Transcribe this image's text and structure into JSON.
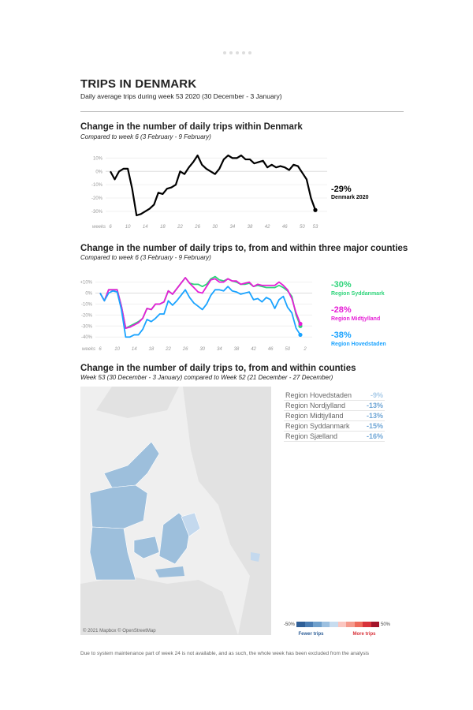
{
  "header": {
    "title": "TRIPS IN DENMARK",
    "subtitle": "Daily average trips during week 53 2020 (30 December - 3 January)"
  },
  "colors": {
    "denmark": "#000000",
    "syddanmark": "#2ed47a",
    "midtjylland": "#e61ed6",
    "hovedstaden": "#1aa3ff"
  },
  "chart_data": [
    {
      "type": "line",
      "title": "Change in the number of daily trips within Denmark",
      "subtitle": "Compared to week 6 (3 February - 9 February)",
      "xlabel": "weeks",
      "ylabel": "",
      "ylim": [
        -33,
        12
      ],
      "yticks": [
        {
          "v": 10,
          "label": "10%"
        },
        {
          "v": 0,
          "label": "0%"
        },
        {
          "v": -10,
          "label": "-10%"
        },
        {
          "v": -20,
          "label": "-20%"
        },
        {
          "v": -30,
          "label": "-30%"
        }
      ],
      "xticks": [
        "6",
        "10",
        "14",
        "18",
        "22",
        "26",
        "30",
        "34",
        "38",
        "42",
        "46",
        "50",
        "53"
      ],
      "x": [
        6,
        7,
        8,
        9,
        10,
        11,
        12,
        13,
        14,
        15,
        16,
        17,
        18,
        19,
        20,
        21,
        22,
        23,
        24,
        25,
        26,
        27,
        28,
        29,
        30,
        31,
        32,
        33,
        34,
        35,
        36,
        37,
        38,
        39,
        40,
        41,
        42,
        43,
        44,
        45,
        46,
        47,
        48,
        49,
        50,
        51,
        52,
        53
      ],
      "series": [
        {
          "name": "Denmark 2020",
          "final_label": "-29%",
          "values": [
            0,
            -6,
            0,
            2,
            2,
            -13,
            -33,
            -32,
            -30,
            -28,
            -25,
            -16,
            -17,
            -13,
            -12,
            -10,
            0,
            -2,
            3,
            7,
            12,
            5,
            2,
            0,
            -2,
            2,
            9,
            12,
            10,
            10,
            12,
            9,
            9,
            6,
            7,
            8,
            3,
            5,
            3,
            4,
            3,
            1,
            5,
            4,
            -1,
            -6,
            -20,
            -29
          ]
        }
      ]
    },
    {
      "type": "line",
      "title": "Change in the number of daily trips to, from and within three major counties",
      "subtitle": "Compared to week 6 (3 February - 9 February)",
      "xlabel": "weeks",
      "ylim": [
        -42,
        14
      ],
      "yticks": [
        {
          "v": 10,
          "label": "+10%"
        },
        {
          "v": 0,
          "label": "0%"
        },
        {
          "v": -10,
          "label": "-10%"
        },
        {
          "v": -20,
          "label": "-20%"
        },
        {
          "v": -30,
          "label": "-30%"
        },
        {
          "v": -40,
          "label": "-40%"
        }
      ],
      "xticks": [
        "6",
        "10",
        "14",
        "18",
        "22",
        "26",
        "30",
        "34",
        "38",
        "42",
        "46",
        "50",
        "2"
      ],
      "series": [
        {
          "name": "Region Syddanmark",
          "final_label": "-30%",
          "color": "#2ed47a",
          "values": [
            0,
            -7,
            3,
            3,
            3,
            -12,
            -32,
            -30,
            -28,
            -26,
            -23,
            -14,
            -15,
            -10,
            -10,
            -8,
            2,
            -1,
            4,
            9,
            14,
            9,
            8,
            8,
            6,
            8,
            13,
            15,
            12,
            11,
            13,
            11,
            10,
            8,
            8,
            9,
            6,
            7,
            6,
            5,
            5,
            5,
            7,
            5,
            2,
            -3,
            -20,
            -30
          ]
        },
        {
          "name": "Region Midtjylland",
          "final_label": "-28%",
          "color": "#e61ed6",
          "values": [
            0,
            -7,
            3,
            3,
            3,
            -12,
            -32,
            -31,
            -29,
            -27,
            -23,
            -14,
            -15,
            -10,
            -10,
            -8,
            2,
            -1,
            4,
            9,
            14,
            9,
            5,
            1,
            0,
            6,
            12,
            13,
            10,
            10,
            13,
            11,
            11,
            8,
            9,
            10,
            6,
            8,
            7,
            7,
            7,
            7,
            10,
            7,
            3,
            -5,
            -18,
            -28
          ]
        },
        {
          "name": "Region Hovedstaden",
          "final_label": "-38%",
          "color": "#1aa3ff",
          "values": [
            0,
            -7,
            0,
            2,
            1,
            -15,
            -40,
            -40,
            -38,
            -38,
            -33,
            -24,
            -26,
            -23,
            -19,
            -19,
            -7,
            -11,
            -7,
            -2,
            3,
            -4,
            -9,
            -12,
            -15,
            -10,
            -2,
            3,
            3,
            2,
            6,
            2,
            1,
            -1,
            0,
            1,
            -6,
            -5,
            -8,
            -4,
            -6,
            -14,
            -6,
            -3,
            -13,
            -18,
            -32,
            -38
          ]
        }
      ]
    },
    {
      "type": "table",
      "title": "Change in the number of daily trips to, from and within counties",
      "subtitle": "Week 53 (30 December - 3 January) compared to Week 52 (21 December - 27 December)",
      "rows": [
        {
          "region": "Region Hovedstaden",
          "value": "-9%",
          "color": "#a9cbe8"
        },
        {
          "region": "Region Nordjylland",
          "value": "-13%",
          "color": "#6fa6d6"
        },
        {
          "region": "Region Midtjylland",
          "value": "-13%",
          "color": "#6fa6d6"
        },
        {
          "region": "Region Syddanmark",
          "value": "-15%",
          "color": "#6fa6d6"
        },
        {
          "region": "Region Sjælland",
          "value": "-16%",
          "color": "#6fa6d6"
        }
      ],
      "legend": {
        "min": "-50%",
        "max": "50%",
        "left_label": "Fewer trips",
        "right_label": "More trips",
        "colors": [
          "#2f5f97",
          "#4a7db3",
          "#6fa0cc",
          "#9cc0e0",
          "#c7dcef",
          "#fbc6c0",
          "#f59a8c",
          "#ee6a5a",
          "#d8323a",
          "#a3142a"
        ]
      }
    }
  ],
  "map": {
    "attribution": "© 2021 Mapbox © OpenStreetMap"
  },
  "footer": "Due to system maintenance part of week 24 is not available, and as such, the whole week has been excluded from the analysis"
}
